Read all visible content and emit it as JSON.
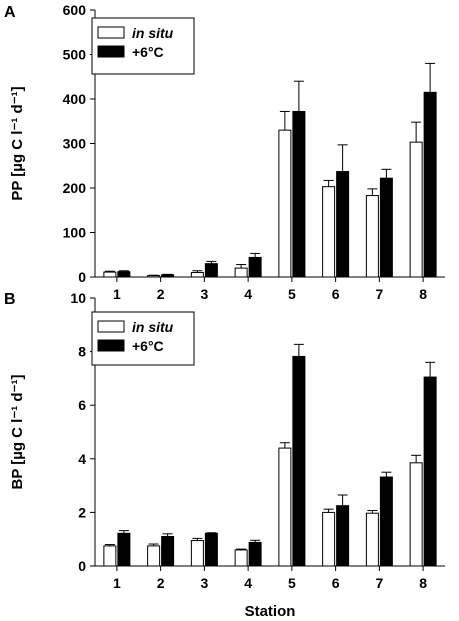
{
  "chart_data": [
    {
      "type": "bar",
      "panel_label": "A",
      "ylabel": "PP [µg C l⁻¹ d⁻¹]",
      "xlabel": "",
      "ylim": [
        0,
        600
      ],
      "yticks": [
        0,
        100,
        200,
        300,
        400,
        500,
        600
      ],
      "categories": [
        "1",
        "2",
        "3",
        "4",
        "5",
        "6",
        "7",
        "8"
      ],
      "legend_position": "top-left",
      "series": [
        {
          "name": "in situ",
          "color": "#ffffff",
          "values": [
            11,
            3,
            10,
            20,
            330,
            203,
            183,
            303
          ],
          "errors": [
            2,
            1,
            4,
            8,
            42,
            14,
            15,
            45
          ]
        },
        {
          "name": "+6°C",
          "color": "#000000",
          "values": [
            12,
            5,
            30,
            44,
            372,
            237,
            222,
            415
          ],
          "errors": [
            2,
            1,
            5,
            9,
            68,
            60,
            20,
            65
          ]
        }
      ]
    },
    {
      "type": "bar",
      "panel_label": "B",
      "ylabel": "BP [µg C l⁻¹ d⁻¹]",
      "xlabel": "Station",
      "ylim": [
        0,
        10
      ],
      "yticks": [
        0,
        2,
        4,
        6,
        8,
        10
      ],
      "categories": [
        "1",
        "2",
        "3",
        "4",
        "5",
        "6",
        "7",
        "8"
      ],
      "legend_position": "top-left",
      "series": [
        {
          "name": "in situ",
          "color": "#ffffff",
          "values": [
            0.75,
            0.75,
            0.95,
            0.6,
            4.4,
            2.0,
            1.97,
            3.85
          ],
          "errors": [
            0.05,
            0.07,
            0.08,
            0.03,
            0.2,
            0.12,
            0.1,
            0.28
          ]
        },
        {
          "name": "+6°C",
          "color": "#000000",
          "values": [
            1.22,
            1.1,
            1.22,
            0.88,
            7.82,
            2.25,
            3.32,
            7.05
          ],
          "errors": [
            0.1,
            0.1,
            0.02,
            0.08,
            0.45,
            0.4,
            0.18,
            0.55
          ]
        }
      ]
    }
  ]
}
